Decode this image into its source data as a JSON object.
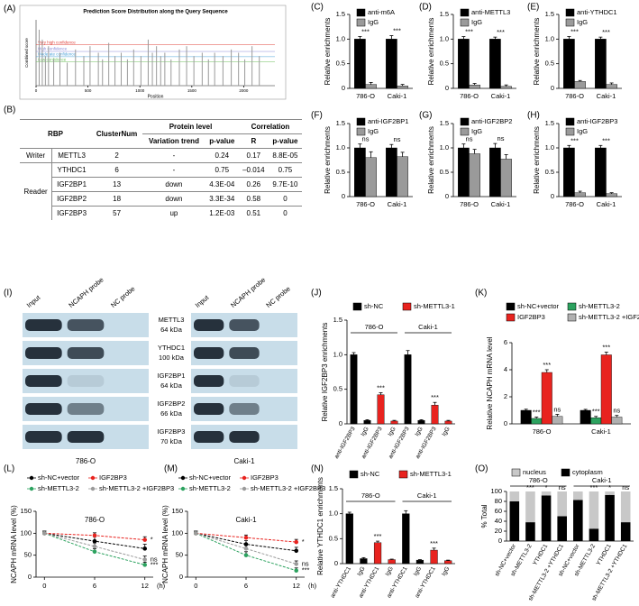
{
  "panels": [
    "(A)",
    "(B)",
    "(C)",
    "(D)",
    "(E)",
    "(F)",
    "(G)",
    "(H)",
    "(I)",
    "(J)",
    "(K)",
    "(L)",
    "(M)",
    "(N)",
    "(O)"
  ],
  "table": {
    "header": [
      "RBP",
      "ClusterNum",
      "Protein level",
      "Correlation"
    ],
    "subheader": [
      "Variation trend",
      "p-value",
      "R",
      "p-value"
    ],
    "groups": [
      {
        "label": "Writer",
        "rows": [
          [
            "METTL3",
            "2",
            "-",
            "0.24",
            "0.17",
            "8.8E-05"
          ]
        ]
      },
      {
        "label": "Reader",
        "rows": [
          [
            "YTHDC1",
            "6",
            "-",
            "0.75",
            "–0.014",
            "0.75"
          ],
          [
            "IGF2BP1",
            "13",
            "down",
            "4.3E-04",
            "0.26",
            "9.7E-10"
          ],
          [
            "IGF2BP2",
            "18",
            "down",
            "3.3E-34",
            "0.58",
            "0"
          ],
          [
            "IGF2BP3",
            "57",
            "up",
            "1.2E-03",
            "0.51",
            "0"
          ]
        ]
      }
    ]
  },
  "blot": {
    "columns": [
      "Input",
      "NCAPH probe",
      "NC probe"
    ],
    "proteins": [
      {
        "name": "METTL3",
        "size": "64 kDa"
      },
      {
        "name": "YTHDC1",
        "size": "100 kDa"
      },
      {
        "name": "IGF2BP1",
        "size": "64 kDa"
      },
      {
        "name": "IGF2BP2",
        "size": "66 kDa"
      },
      {
        "name": "IGF2BP3",
        "size": "70 kDa"
      }
    ],
    "cell_lines": [
      "786-O",
      "Caki-1"
    ]
  },
  "chart_data": [
    {
      "type": "spike",
      "title": "Prediction Score Distribution along the Query Sequence",
      "xlabel": "Position",
      "ylabel": "Combined score",
      "color": "#9a9a9a",
      "x": [
        30,
        60,
        90,
        120,
        170,
        230,
        300,
        380,
        460,
        520,
        600,
        640,
        700,
        760,
        820,
        880,
        940,
        1010,
        1080,
        1120,
        1160,
        1200,
        1240,
        1300,
        1380,
        1450,
        1520,
        1600,
        1660,
        1720,
        1800,
        1880,
        1950,
        2010,
        2080,
        2150
      ],
      "values": [
        0.85,
        0.7,
        0.45,
        0.6,
        0.4,
        0.5,
        0.35,
        0.55,
        0.45,
        0.6,
        0.5,
        0.4,
        0.65,
        0.45,
        0.5,
        0.4,
        0.55,
        0.45,
        0.7,
        0.5,
        0.6,
        0.45,
        0.5,
        0.4,
        0.55,
        0.6,
        0.45,
        0.5,
        0.4,
        0.5,
        0.45,
        0.55,
        0.5,
        0.4,
        0.6,
        0.45
      ],
      "xlim": [
        0,
        2300
      ],
      "ylim": [
        0,
        1
      ],
      "xticks": [
        0,
        500,
        1000,
        1500,
        2000
      ],
      "thresholds": [
        {
          "name": "Very high confidence",
          "value": 0.62,
          "color": "#e0413a"
        },
        {
          "name": "High confidence",
          "value": 0.52,
          "color": "#8a8ad8"
        },
        {
          "name": "Moderate confidence",
          "value": 0.44,
          "color": "#4aa0d8"
        },
        {
          "name": "Low confidence",
          "value": 0.36,
          "color": "#6cbf5a"
        }
      ]
    },
    {
      "type": "bar",
      "ylabel": "Relative enrichments",
      "categories": [
        "786-O",
        "Caki-1"
      ],
      "series": [
        {
          "name": "anti-m6A",
          "color": "#000000",
          "values": [
            1,
            1
          ],
          "errors": [
            0.05,
            0.07
          ]
        },
        {
          "name": "IgG",
          "color": "#9a9a9a",
          "values": [
            0.08,
            0.05
          ],
          "errors": [
            0.04,
            0.03
          ]
        }
      ],
      "annotations": [
        "***",
        "***"
      ],
      "ylim": [
        0,
        1.5
      ],
      "yticks": [
        0,
        0.5,
        {
          "value": 1,
          "label": "1.0"
        },
        1.5
      ]
    },
    {
      "type": "bar",
      "ylabel": "Relative enrichments",
      "categories": [
        "786-O",
        "Caki-1"
      ],
      "series": [
        {
          "name": "anti-METTL3",
          "color": "#000000",
          "values": [
            1,
            1
          ],
          "errors": [
            0.05,
            0.04
          ]
        },
        {
          "name": "IgG",
          "color": "#9a9a9a",
          "values": [
            0.07,
            0.04
          ],
          "errors": [
            0.03,
            0.03
          ]
        }
      ],
      "annotations": [
        "***",
        "***"
      ],
      "ylim": [
        0,
        1.5
      ],
      "yticks": [
        0,
        0.5,
        {
          "value": 1,
          "label": "1.0"
        },
        1.5
      ]
    },
    {
      "type": "bar",
      "ylabel": "Relative enrichments",
      "categories": [
        "786-O",
        "Caki-1"
      ],
      "series": [
        {
          "name": "anti-YTHDC1",
          "color": "#000000",
          "values": [
            1,
            1
          ],
          "errors": [
            0.05,
            0.04
          ]
        },
        {
          "name": "IgG",
          "color": "#9a9a9a",
          "values": [
            0.14,
            0.08
          ],
          "errors": [
            0.02,
            0.03
          ]
        }
      ],
      "annotations": [
        "***",
        "***"
      ],
      "ylim": [
        0,
        1.5
      ],
      "yticks": [
        0,
        0.5,
        {
          "value": 1,
          "label": "1.0"
        },
        1.5
      ]
    },
    {
      "type": "bar",
      "ylabel": "Relative enrichments",
      "categories": [
        "786-O",
        "Caki-1"
      ],
      "series": [
        {
          "name": "anti-IGF2BP1",
          "color": "#000000",
          "values": [
            1,
            1
          ],
          "errors": [
            0.08,
            0.07
          ]
        },
        {
          "name": "IgG",
          "color": "#9a9a9a",
          "values": [
            0.8,
            0.82
          ],
          "errors": [
            0.12,
            0.09
          ]
        }
      ],
      "annotations": [
        "ns",
        "ns"
      ],
      "ylim": [
        0,
        1.5
      ],
      "yticks": [
        0,
        0.5,
        {
          "value": 1,
          "label": "1.0"
        },
        1.5
      ]
    },
    {
      "type": "bar",
      "ylabel": "Relative enrichments",
      "categories": [
        "786-O",
        "Caki-1"
      ],
      "series": [
        {
          "name": "anti-IGF2BP2",
          "color": "#000000",
          "values": [
            1,
            1
          ],
          "errors": [
            0.08,
            0.09
          ]
        },
        {
          "name": "IgG",
          "color": "#9a9a9a",
          "values": [
            0.88,
            0.77
          ],
          "errors": [
            0.09,
            0.09
          ]
        }
      ],
      "annotations": [
        "ns",
        "ns"
      ],
      "ylim": [
        0,
        1.5
      ],
      "yticks": [
        0,
        0.5,
        {
          "value": 1,
          "label": "1.0"
        },
        1.5
      ]
    },
    {
      "type": "bar",
      "ylabel": "Relative enrichments",
      "categories": [
        "786-O",
        "Caki-1"
      ],
      "series": [
        {
          "name": "anti-IGF2BP3",
          "color": "#000000",
          "values": [
            1,
            1
          ],
          "errors": [
            0.05,
            0.05
          ]
        },
        {
          "name": "IgG",
          "color": "#9a9a9a",
          "values": [
            0.08,
            0.06
          ],
          "errors": [
            0.03,
            0.02
          ]
        }
      ],
      "annotations": [
        "***",
        "***"
      ],
      "ylim": [
        0,
        1.5
      ],
      "yticks": [
        0,
        0.5,
        {
          "value": 1,
          "label": "1.0"
        },
        1.5
      ]
    },
    {
      "type": "bar",
      "ylabel": "Relative IGF2BP3 enrichments",
      "categories": [
        "anti-IGF2BP3",
        "IgG",
        "anti-IGF2BP3",
        "IgG",
        "anti-IGF2BP3",
        "IgG",
        "anti-IGF2BP3",
        "IgG"
      ],
      "groups": [
        "786-O",
        "Caki-1"
      ],
      "series": [
        {
          "name": "sh-NC",
          "color": "#000000",
          "values": [
            1,
            0.05,
            null,
            null,
            1,
            0.05,
            null,
            null
          ],
          "errors": [
            0.03,
            0.01,
            null,
            null,
            0.06,
            0.01,
            null,
            null
          ]
        },
        {
          "name": "sh-METTL3-1",
          "color": "#e8231f",
          "values": [
            null,
            null,
            0.42,
            0.04,
            null,
            null,
            0.27,
            0.04
          ],
          "errors": [
            null,
            null,
            0.03,
            0.01,
            null,
            null,
            0.04,
            0.01
          ]
        }
      ],
      "annotations": [
        null,
        null,
        "***",
        null,
        null,
        null,
        "***",
        null
      ],
      "rotate_labels": true,
      "ylim": [
        0,
        1.5
      ],
      "yticks": [
        0,
        0.5,
        {
          "value": 1,
          "label": "1.0"
        },
        1.5
      ]
    },
    {
      "type": "bar",
      "ylabel": "Relative NCAPH mRNA level",
      "categories": [
        "786-O",
        "Caki-1"
      ],
      "series": [
        {
          "name": "sh-NC+vector",
          "color": "#000000",
          "values": [
            1,
            1
          ],
          "errors": [
            0.08,
            0.07
          ],
          "labels": [
            null,
            null
          ]
        },
        {
          "name": "sh-METTL3-2",
          "color": "#2ca25f",
          "values": [
            0.4,
            0.45
          ],
          "errors": [
            0.1,
            0.1
          ],
          "labels": [
            "***",
            "***"
          ]
        },
        {
          "name": "IGF2BP3",
          "color": "#e8231f",
          "values": [
            3.8,
            5.1
          ],
          "errors": [
            0.2,
            0.2
          ],
          "labels": [
            "***",
            "***"
          ]
        },
        {
          "name": "sh-METTL3-2 +IGF2BP3",
          "color": "#b0b0b0",
          "values": [
            0.55,
            0.5
          ],
          "errors": [
            0.15,
            0.12
          ],
          "labels": [
            "ns",
            "ns"
          ]
        }
      ],
      "ylim": [
        0,
        6
      ],
      "yticks": [
        0,
        2,
        4,
        6
      ]
    },
    {
      "type": "line",
      "subtitle": "786-O",
      "ylabel": "NCAPH mRNA level (%)",
      "xlabel": "(h)",
      "x": [
        0,
        6,
        12
      ],
      "xlim": [
        -1,
        13
      ],
      "xticks": [
        0,
        6,
        12
      ],
      "ylim": [
        0,
        150
      ],
      "yticks": [
        0,
        50,
        100,
        150
      ],
      "series": [
        {
          "name": "sh-NC+vector",
          "color": "#000000",
          "values": [
            100,
            82,
            65
          ],
          "errors": [
            5,
            10,
            10
          ],
          "end_label": null
        },
        {
          "name": "IGF2BP3",
          "color": "#e8231f",
          "values": [
            100,
            95,
            85
          ],
          "errors": [
            5,
            6,
            7
          ],
          "end_label": "*"
        },
        {
          "name": "sh-METTL3-2",
          "color": "#2ca25f",
          "values": [
            100,
            58,
            28
          ],
          "errors": [
            5,
            7,
            6
          ],
          "end_label": "***"
        },
        {
          "name": "sh-METTL3-2 +IGF2BP3",
          "color": "#9a9a9a",
          "values": [
            100,
            70,
            40
          ],
          "errors": [
            5,
            8,
            8
          ],
          "end_label": "ns"
        }
      ]
    },
    {
      "type": "line",
      "subtitle": "Caki-1",
      "ylabel": "NCAPH mRNA level (%)",
      "xlabel": "(h)",
      "x": [
        0,
        6,
        12
      ],
      "xlim": [
        -1,
        13
      ],
      "xticks": [
        0,
        6,
        12
      ],
      "ylim": [
        0,
        150
      ],
      "yticks": [
        0,
        50,
        100,
        150
      ],
      "series": [
        {
          "name": "sh-NC+vector",
          "color": "#000000",
          "values": [
            100,
            75,
            60
          ],
          "errors": [
            5,
            8,
            8
          ],
          "end_label": null
        },
        {
          "name": "IGF2BP3",
          "color": "#e8231f",
          "values": [
            100,
            90,
            80
          ],
          "errors": [
            5,
            6,
            6
          ],
          "end_label": "*"
        },
        {
          "name": "sh-METTL3-2",
          "color": "#2ca25f",
          "values": [
            100,
            50,
            15
          ],
          "errors": [
            5,
            8,
            6
          ],
          "end_label": "***"
        },
        {
          "name": "sh-METTL3-2 +IGF2BP3",
          "color": "#9a9a9a",
          "values": [
            100,
            65,
            30
          ],
          "errors": [
            5,
            8,
            7
          ],
          "end_label": "ns"
        }
      ]
    },
    {
      "type": "bar",
      "ylabel": "Relative YTHDC1 enrichments",
      "categories": [
        "anti-YTHDC1",
        "IgG",
        "anti-YTHDC1",
        "IgG",
        "anti-YTHDC1",
        "IgG",
        "anti-YTHDC1",
        "IgG"
      ],
      "groups": [
        "786-O",
        "Caki-1"
      ],
      "series": [
        {
          "name": "sh-NC",
          "color": "#000000",
          "values": [
            1,
            0.1,
            null,
            null,
            1,
            0.07,
            null,
            null
          ],
          "errors": [
            0.03,
            0.02,
            null,
            null,
            0.06,
            0.01,
            null,
            null
          ]
        },
        {
          "name": "sh-METTL3-1",
          "color": "#e8231f",
          "values": [
            null,
            null,
            0.42,
            0.08,
            null,
            null,
            0.27,
            0.06
          ],
          "errors": [
            null,
            null,
            0.03,
            0.01,
            null,
            null,
            0.04,
            0.01
          ]
        }
      ],
      "annotations": [
        null,
        null,
        "***",
        null,
        null,
        null,
        "***",
        null
      ],
      "rotate_labels": true,
      "ylim": [
        0,
        1.5
      ],
      "yticks": [
        0,
        0.5,
        {
          "value": 1,
          "label": "1.0"
        },
        1.5
      ]
    },
    {
      "type": "stacked_bar",
      "ylabel": "% Total",
      "categories": [
        "sh-NC+vector",
        "sh-METTL3-2",
        "YTHDC1",
        "sh-METTL3-2 +YTHDC1",
        "sh-NC+vector",
        "sh-METTL3-2",
        "YTHDC1",
        "sh-METTL3-2 +YTHDC1"
      ],
      "groups": [
        "786-O",
        "Caki-1"
      ],
      "series": [
        {
          "name": "nucleus",
          "color": "#c8c8c8",
          "values": [
            20,
            62,
            8,
            50,
            17,
            75,
            7,
            62
          ]
        },
        {
          "name": "cytoplasm",
          "color": "#000000",
          "values": [
            80,
            38,
            92,
            50,
            83,
            25,
            93,
            38
          ],
          "errors": [
            4,
            8,
            3,
            6,
            5,
            3,
            3,
            5
          ]
        }
      ],
      "annotations": [
        null,
        "***",
        "*",
        "ns",
        null,
        "***",
        "*",
        "ns"
      ],
      "rotate_labels": true,
      "ylim": [
        0,
        100
      ],
      "yticks": [
        0,
        20,
        40,
        60,
        80,
        100
      ]
    }
  ]
}
